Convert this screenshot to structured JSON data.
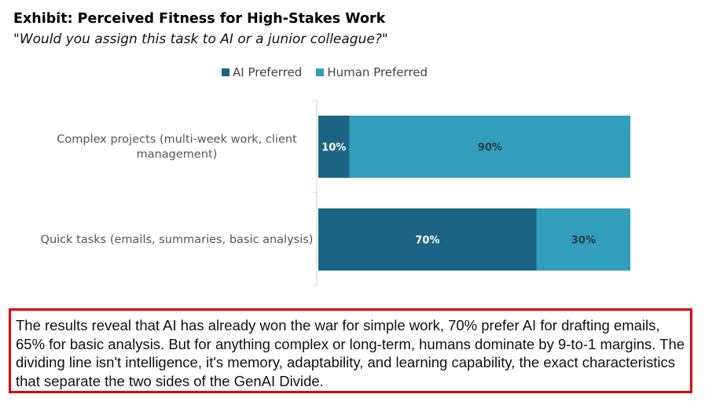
{
  "title": "Exhibit: Perceived Fitness for High-Stakes Work",
  "subtitle": "\"Would you assign this task to AI or a junior colleague?\"",
  "colors": {
    "ai": "#1c6483",
    "human": "#319fbb",
    "callout_border": "#e00000"
  },
  "chart_data": {
    "type": "bar",
    "orientation": "horizontal",
    "stacked": true,
    "categories": [
      [
        "Complex projects (multi-week work, client",
        "management)"
      ],
      [
        "Quick tasks (emails, summaries, basic analysis)"
      ]
    ],
    "series": [
      {
        "name": "AI Preferred",
        "values": [
          10,
          70
        ],
        "color": "#1c6483",
        "label_color": "#ffffff"
      },
      {
        "name": "Human Preferred",
        "values": [
          90,
          30
        ],
        "color": "#319fbb",
        "label_color": "#2a3a44"
      }
    ],
    "xlim": [
      0,
      100
    ],
    "value_suffix": "%",
    "legend": "top",
    "grid": false
  },
  "callout": {
    "text": "The results reveal that AI has already won the war for simple work, 70% prefer AI for drafting emails, 65% for basic analysis. But for anything complex or long-term, humans dominate by 9-to-1 margins. The dividing line isn't intelligence, it's memory, adaptability, and learning capability, the exact characteristics that separate the two sides of the GenAI Divide."
  }
}
